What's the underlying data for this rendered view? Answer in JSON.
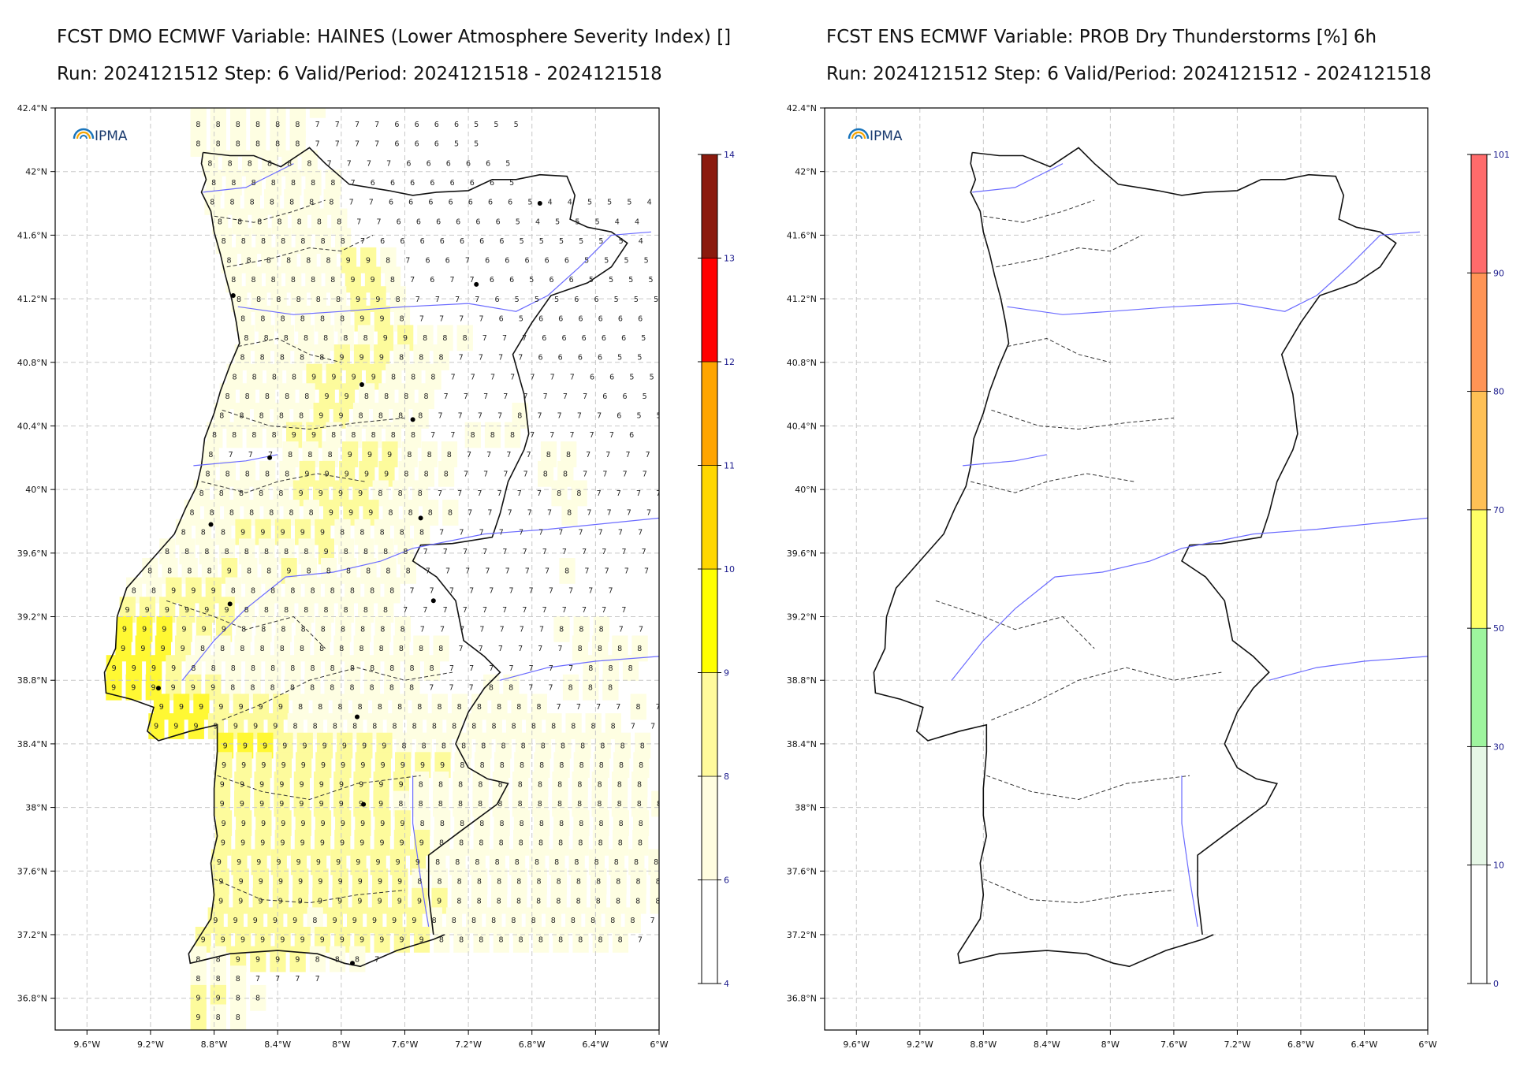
{
  "left_panel": {
    "title_line1": "FCST DMO ECMWF Variable: HAINES (Lower Atmosphere Severity Index) []",
    "title_line2": "Run: 2024121512 Step: 6 Valid/Period: 2024121518 - 2024121518",
    "logo_text": "IPMA",
    "lat_labels": [
      "42.4°N",
      "42°N",
      "41.6°N",
      "41.2°N",
      "40.8°N",
      "40.4°N",
      "40°N",
      "39.6°N",
      "39.2°N",
      "38.8°N",
      "38.4°N",
      "38°N",
      "37.6°N",
      "37.2°N",
      "36.8°N"
    ],
    "lon_labels": [
      "9.6°W",
      "9.2°W",
      "8.8°W",
      "8.4°W",
      "8°W",
      "7.6°W",
      "7.2°W",
      "6.8°W",
      "6.4°W",
      "6°W"
    ],
    "colorbar": {
      "ticks": [
        "4",
        "6",
        "8",
        "9",
        "10",
        "11",
        "12",
        "13",
        "14"
      ],
      "colors": [
        "#ffffff",
        "#fffde0",
        "#fffa9c",
        "#ffff00",
        "#ffd700",
        "#ffa500",
        "#ff0000",
        "#8b1a0e"
      ]
    },
    "grid_values": [
      "88888887777776655544",
      "88888877776666555",
      "888888777766655",
      "8888887777666665",
      "8888888766666665",
      "88888887766666665445554",
      "8888888776666665455544",
      "8888888766666665555554",
      "88888899876676666655555",
      "88888899876776656655554",
      "88888899877776555665554",
      "88888899877776566666654",
      "8888888998887776666655",
      "88888999888777766665555",
      "8888999988877777776655",
      "88888998888777777776655",
      "88888998888777787777655",
      "8888998888877888777776",
      "8777888999888777788777766",
      "8888899999888777788777766",
      "88888999988877777788777766",
      "888888899988887777787777766",
      "8889999988888777777777777",
      "88888888988887777777777777",
      "88889889888888777777787777",
      "8899988888888877777777777",
      "99999988888888777777777777",
      "999999888888888777777788877",
      "999988888888888887777778888",
      "999988888888888887777777888",
      "99999988888888887778877888",
      "99999998888888888888777787777",
      "999999988888888888888888777",
      "99999999988888888888888777",
      "9999999999998888888888887777",
      "99999999998888888888888777",
      "99999999988888888888888777",
      "999999999988888888888888777",
      "999999999998888888888877",
      "99999999999888888888888777",
      "99999999998888888888888877",
      "999999999999888888888888877",
      "999998999998888888888877",
      "999999999999888888888877",
      "8899998887",
      "8887777",
      "9988",
      "988"
    ]
  },
  "right_panel": {
    "title_line1": "FCST ENS ECMWF Variable: PROB Dry Thunderstorms [%] 6h",
    "title_line2": "Run: 2024121512 Step: 6 Valid/Period: 2024121512 - 2024121518",
    "logo_text": "IPMA",
    "lat_labels": [
      "42.4°N",
      "42°N",
      "41.6°N",
      "41.2°N",
      "40.8°N",
      "40.4°N",
      "40°N",
      "39.6°N",
      "39.2°N",
      "38.8°N",
      "38.4°N",
      "38°N",
      "37.6°N",
      "37.2°N",
      "36.8°N"
    ],
    "lon_labels": [
      "9.6°W",
      "9.2°W",
      "8.8°W",
      "8.4°W",
      "8°W",
      "7.6°W",
      "7.2°W",
      "6.8°W",
      "6.4°W",
      "6°W"
    ],
    "colorbar": {
      "ticks": [
        "0",
        "10",
        "30",
        "50",
        "70",
        "80",
        "90",
        "101"
      ],
      "colors": [
        "#ffffff",
        "#e6f7e6",
        "#9ef59e",
        "#ffff66",
        "#ffc055",
        "#ff9455",
        "#ff6b6b"
      ]
    }
  },
  "colors": {
    "coast": "#111111",
    "river": "#6b6bff",
    "grid": "#c8c8c8",
    "label_blue": "#1a1a8c"
  }
}
